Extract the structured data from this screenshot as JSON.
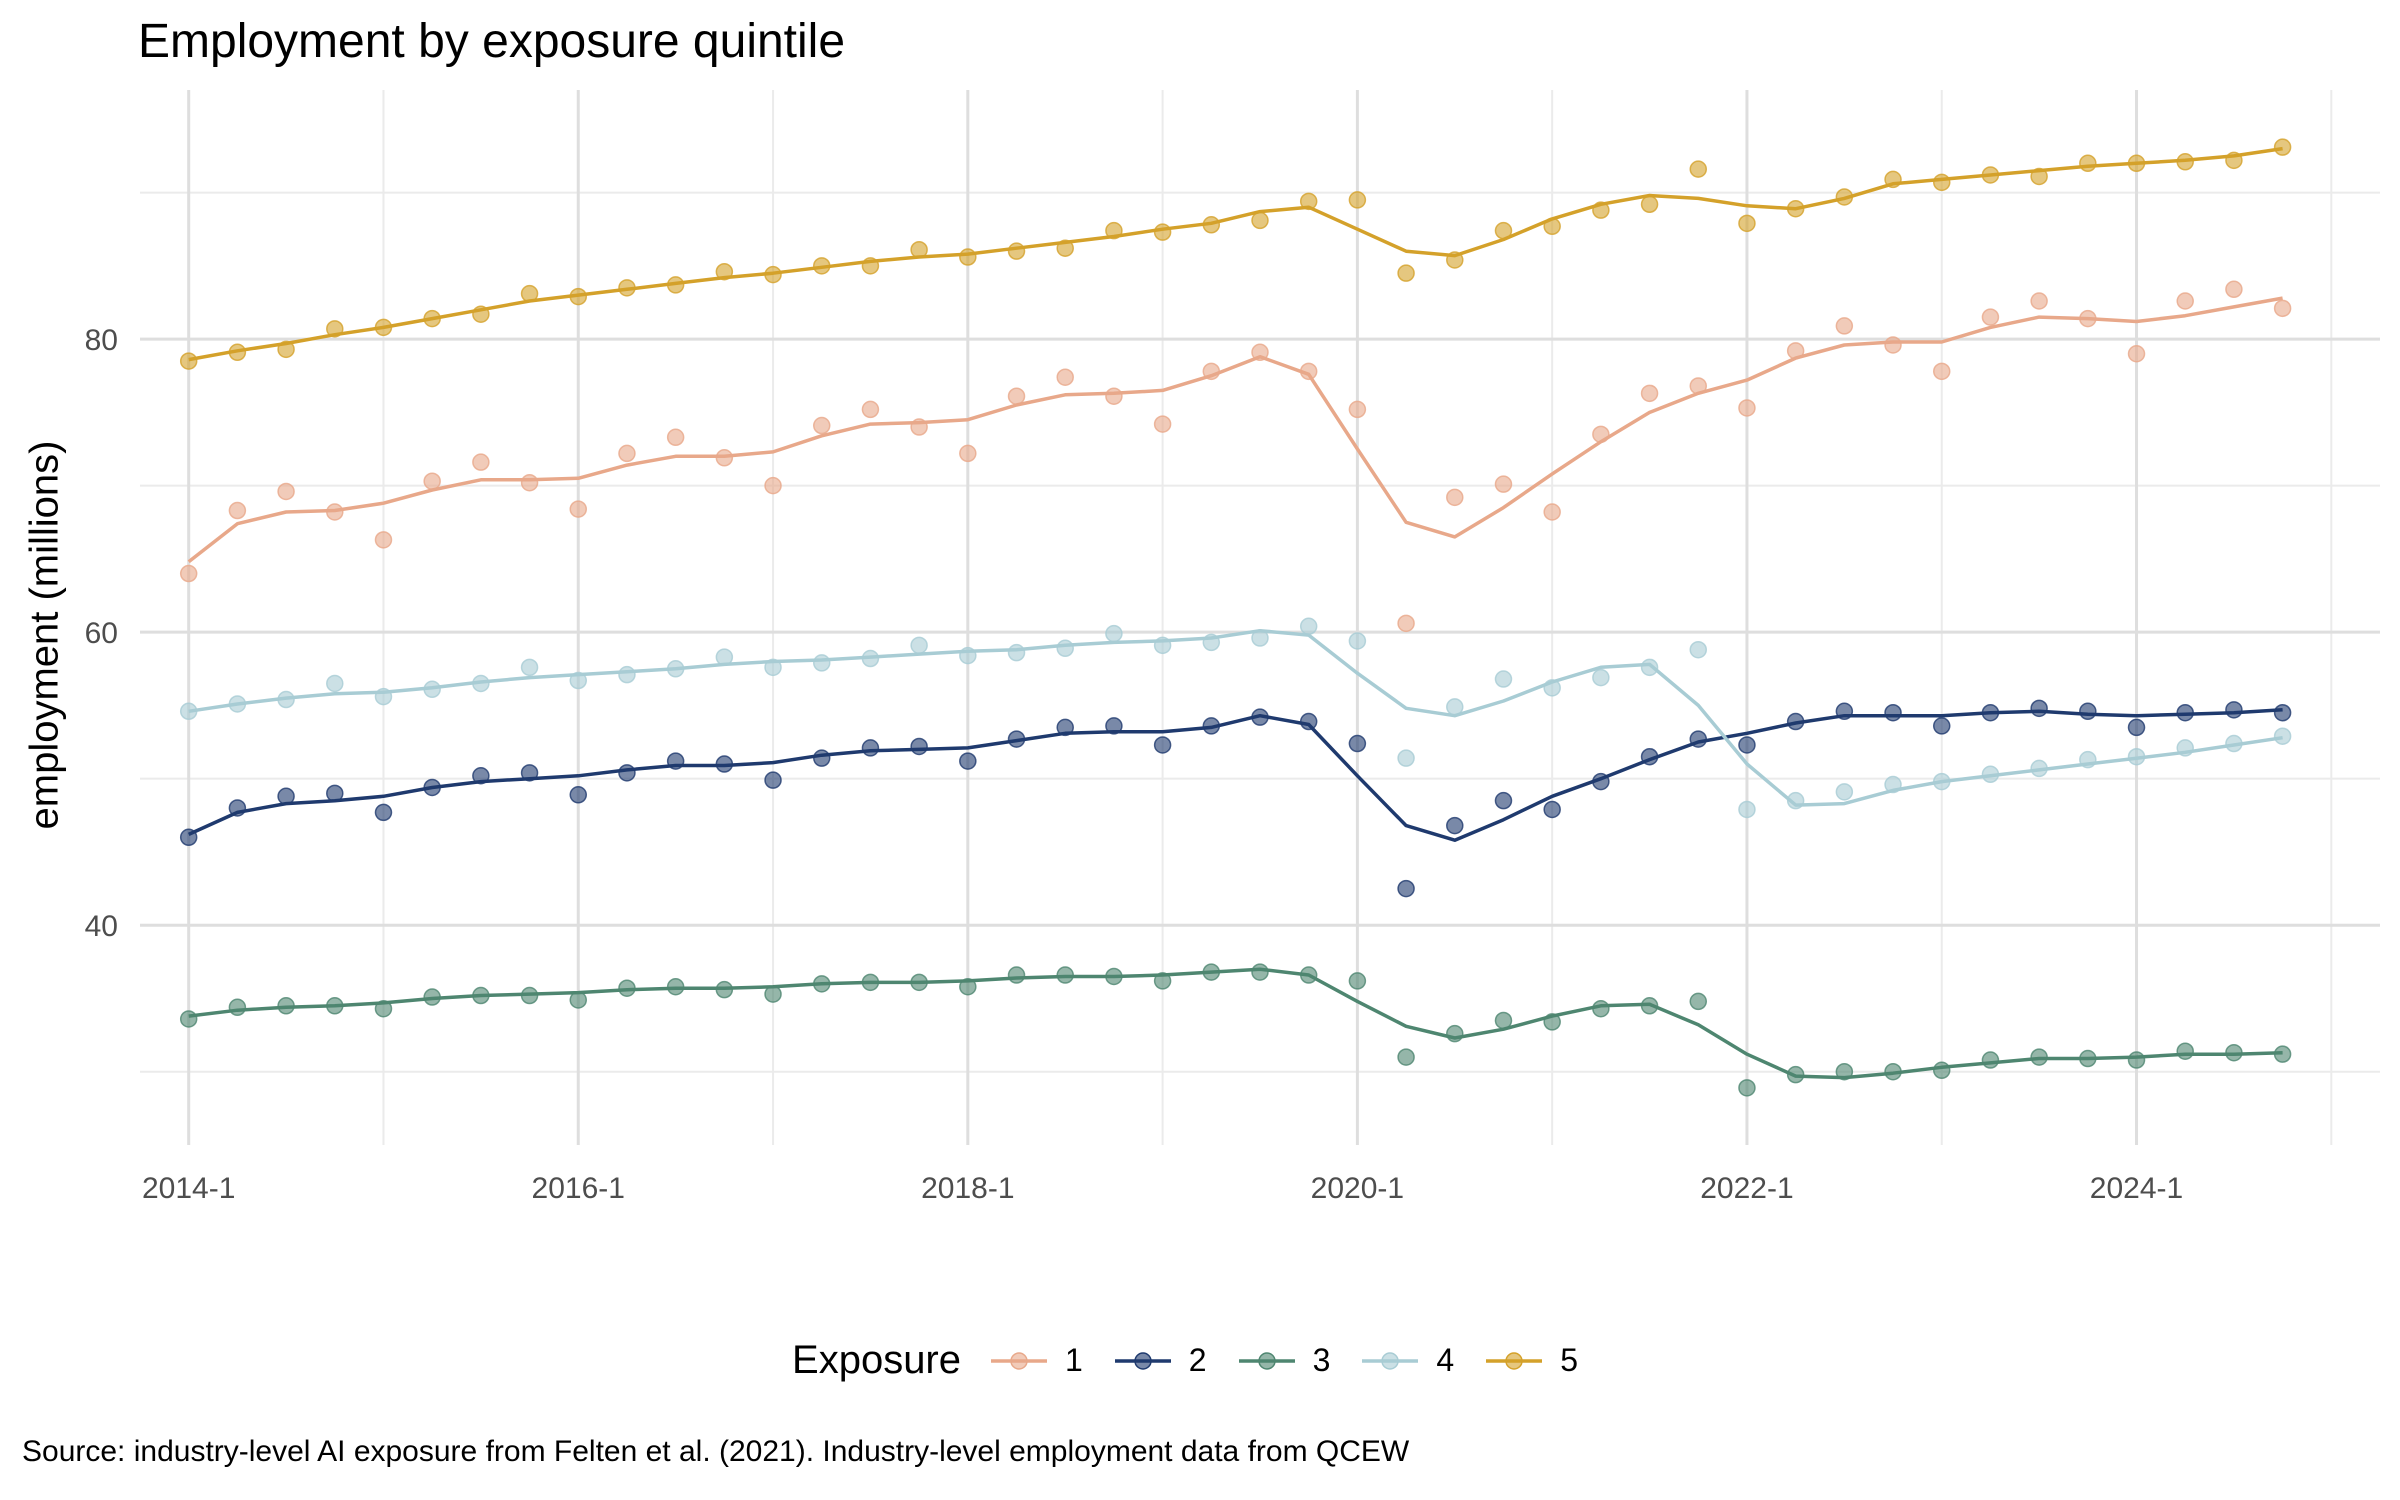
{
  "chart_data": {
    "type": "line",
    "title": "Employment by exposure quintile",
    "ylabel": "employment (millions)",
    "xlabel": "",
    "caption": "Source: industry-level AI exposure from Felten et al. (2021). Industry-level employment data from QCEW",
    "legend_title": "Exposure",
    "legend_position": "bottom",
    "grid": true,
    "ylim": [
      25,
      97
    ],
    "xlim": [
      2013.75,
      2025.25
    ],
    "y_ticks": [
      40,
      60,
      80
    ],
    "x_ticks": [
      {
        "x": 2014,
        "label": "2014-1"
      },
      {
        "x": 2016,
        "label": "2016-1"
      },
      {
        "x": 2018,
        "label": "2018-1"
      },
      {
        "x": 2020,
        "label": "2020-1"
      },
      {
        "x": 2022,
        "label": "2022-1"
      },
      {
        "x": 2024,
        "label": "2024-1"
      }
    ],
    "x": [
      2014,
      2014.25,
      2014.5,
      2014.75,
      2015,
      2015.25,
      2015.5,
      2015.75,
      2016,
      2016.25,
      2016.5,
      2016.75,
      2017,
      2017.25,
      2017.5,
      2017.75,
      2018,
      2018.25,
      2018.5,
      2018.75,
      2019,
      2019.25,
      2019.5,
      2019.75,
      2020,
      2020.25,
      2020.5,
      2020.75,
      2021,
      2021.25,
      2021.5,
      2021.75,
      2022,
      2022.25,
      2022.5,
      2022.75,
      2023,
      2023.25,
      2023.5,
      2023.75,
      2024,
      2024.25,
      2024.5,
      2024.75
    ],
    "series": [
      {
        "name": "1",
        "color": "#e8a88a",
        "points": [
          64.0,
          68.3,
          69.6,
          68.2,
          66.3,
          70.3,
          71.6,
          70.2,
          68.4,
          72.2,
          73.3,
          71.9,
          70.0,
          74.1,
          75.2,
          74.0,
          72.2,
          76.1,
          77.4,
          76.1,
          74.2,
          77.8,
          79.1,
          77.8,
          75.2,
          60.6,
          69.2,
          70.1,
          68.2,
          73.5,
          76.3,
          76.8,
          75.3,
          79.2,
          80.9,
          79.6,
          77.8,
          81.5,
          82.6,
          81.4,
          79.0,
          82.6,
          83.4,
          82.1
        ],
        "smooth": [
          64.8,
          67.4,
          68.2,
          68.3,
          68.8,
          69.7,
          70.4,
          70.4,
          70.5,
          71.4,
          72.0,
          72.0,
          72.3,
          73.4,
          74.2,
          74.3,
          74.5,
          75.5,
          76.2,
          76.3,
          76.5,
          77.5,
          78.8,
          77.6,
          72.5,
          67.5,
          66.5,
          68.5,
          70.8,
          73.0,
          75.0,
          76.3,
          77.2,
          78.7,
          79.6,
          79.8,
          79.8,
          80.8,
          81.5,
          81.4,
          81.2,
          81.6,
          82.2,
          82.8
        ]
      },
      {
        "name": "2",
        "color": "#1f3a6e",
        "points": [
          46.0,
          48.0,
          48.8,
          49.0,
          47.7,
          49.4,
          50.2,
          50.4,
          48.9,
          50.4,
          51.2,
          51.0,
          49.9,
          51.4,
          52.1,
          52.2,
          51.2,
          52.7,
          53.5,
          53.6,
          52.3,
          53.6,
          54.2,
          53.9,
          52.4,
          42.5,
          46.8,
          48.5,
          47.9,
          49.8,
          51.5,
          52.7,
          52.3,
          53.9,
          54.6,
          54.5,
          53.6,
          54.5,
          54.8,
          54.6,
          53.5,
          54.5,
          54.7,
          54.5
        ],
        "smooth": [
          46.2,
          47.7,
          48.3,
          48.5,
          48.8,
          49.4,
          49.8,
          50.0,
          50.2,
          50.6,
          50.9,
          50.9,
          51.1,
          51.6,
          51.9,
          52.0,
          52.1,
          52.6,
          53.1,
          53.2,
          53.2,
          53.5,
          54.3,
          53.7,
          50.2,
          46.8,
          45.8,
          47.2,
          48.8,
          50.0,
          51.3,
          52.5,
          53.1,
          53.8,
          54.3,
          54.3,
          54.3,
          54.5,
          54.6,
          54.4,
          54.3,
          54.4,
          54.5,
          54.7
        ]
      },
      {
        "name": "3",
        "color": "#4e8670",
        "points": [
          33.6,
          34.4,
          34.5,
          34.5,
          34.3,
          35.1,
          35.2,
          35.2,
          34.9,
          35.7,
          35.8,
          35.6,
          35.3,
          36.0,
          36.1,
          36.1,
          35.8,
          36.6,
          36.6,
          36.5,
          36.2,
          36.8,
          36.8,
          36.6,
          36.2,
          31.0,
          32.6,
          33.5,
          33.4,
          34.3,
          34.5,
          34.8,
          28.9,
          29.8,
          30.0,
          30.0,
          30.1,
          30.8,
          31.0,
          30.9,
          30.8,
          31.4,
          31.3,
          31.2
        ],
        "smooth": [
          33.8,
          34.2,
          34.4,
          34.5,
          34.7,
          35.0,
          35.2,
          35.3,
          35.4,
          35.6,
          35.7,
          35.7,
          35.8,
          36.0,
          36.1,
          36.1,
          36.2,
          36.4,
          36.5,
          36.5,
          36.6,
          36.8,
          37.0,
          36.6,
          34.8,
          33.1,
          32.3,
          32.9,
          33.8,
          34.5,
          34.6,
          33.2,
          31.2,
          29.7,
          29.6,
          29.9,
          30.3,
          30.6,
          30.9,
          30.9,
          31.0,
          31.2,
          31.2,
          31.3
        ]
      },
      {
        "name": "4",
        "color": "#a8ccd4",
        "points": [
          54.6,
          55.1,
          55.4,
          56.5,
          55.6,
          56.1,
          56.5,
          57.6,
          56.7,
          57.1,
          57.5,
          58.3,
          57.6,
          57.9,
          58.2,
          59.1,
          58.4,
          58.6,
          58.9,
          59.9,
          59.1,
          59.3,
          59.6,
          60.4,
          59.4,
          51.4,
          54.9,
          56.8,
          56.2,
          56.9,
          57.6,
          58.8,
          47.9,
          48.5,
          49.1,
          49.6,
          49.8,
          50.3,
          50.7,
          51.3,
          51.5,
          52.1,
          52.4,
          52.9
        ],
        "smooth": [
          54.6,
          55.1,
          55.5,
          55.8,
          55.9,
          56.2,
          56.6,
          56.9,
          57.1,
          57.3,
          57.5,
          57.8,
          58.0,
          58.1,
          58.3,
          58.5,
          58.7,
          58.8,
          59.1,
          59.3,
          59.4,
          59.6,
          60.1,
          59.8,
          57.2,
          54.8,
          54.3,
          55.3,
          56.6,
          57.6,
          57.8,
          55.0,
          51.0,
          48.2,
          48.3,
          49.2,
          49.8,
          50.2,
          50.6,
          51.0,
          51.4,
          51.8,
          52.3,
          52.8
        ]
      },
      {
        "name": "5",
        "color": "#d4a12a",
        "points": [
          78.5,
          79.1,
          79.3,
          80.7,
          80.8,
          81.4,
          81.7,
          83.1,
          82.9,
          83.5,
          83.7,
          84.6,
          84.4,
          85.0,
          85.0,
          86.1,
          85.6,
          86.0,
          86.2,
          87.4,
          87.3,
          87.8,
          88.1,
          89.4,
          89.5,
          84.5,
          85.4,
          87.4,
          87.7,
          88.8,
          89.2,
          91.6,
          87.9,
          88.9,
          89.7,
          90.9,
          90.7,
          91.2,
          91.1,
          92.0,
          92.0,
          92.1,
          92.2,
          93.1
        ],
        "smooth": [
          78.6,
          79.2,
          79.7,
          80.3,
          80.8,
          81.4,
          82.0,
          82.6,
          83.0,
          83.4,
          83.8,
          84.2,
          84.5,
          84.9,
          85.3,
          85.6,
          85.8,
          86.2,
          86.6,
          87.0,
          87.5,
          87.9,
          88.7,
          89.0,
          87.5,
          86.0,
          85.7,
          86.8,
          88.2,
          89.2,
          89.8,
          89.6,
          89.1,
          88.9,
          89.6,
          90.6,
          90.9,
          91.2,
          91.5,
          91.8,
          92.0,
          92.2,
          92.5,
          93.0
        ]
      }
    ]
  }
}
